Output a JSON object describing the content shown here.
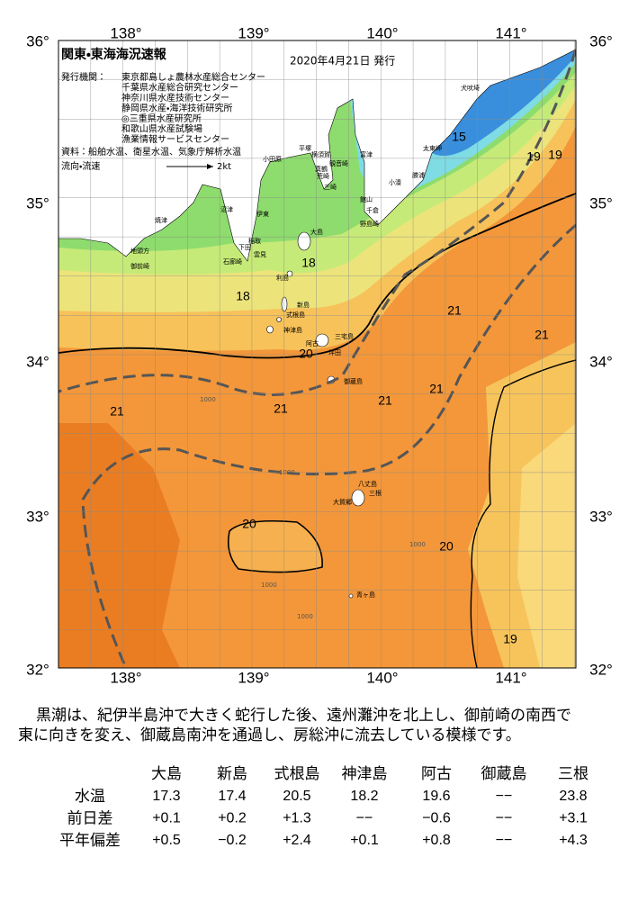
{
  "map": {
    "title": "関東・東海海況速報",
    "date": "2020年4月21日 発行",
    "issuer_label": "発行機関：",
    "issuers": [
      "東京都島しょ農林水産総合センター",
      "千葉県水産総合研究センター",
      "神奈川県水産技術センター",
      "静岡県水産・海洋技術研究所",
      "◎三重県水産研究所",
      "和歌山県水産試験場",
      "漁業情報サービスセンター"
    ],
    "sources": "資料：船舶水温、衛星水温、気象庁解析水温",
    "flow_label": "流向・流速",
    "flow_scale": "2kt",
    "lon_labels": [
      "138°",
      "139°",
      "140°",
      "141°"
    ],
    "lat_labels": [
      "36°",
      "35°",
      "34°",
      "33°",
      "32°"
    ],
    "places": [
      "犬吠埼",
      "太東岬",
      "勝浦",
      "小湊",
      "富津",
      "観音崎",
      "横須賀",
      "平塚",
      "小田原",
      "真鶴",
      "荒崎",
      "三崎",
      "館山",
      "千倉",
      "野島崎",
      "大島",
      "伊東",
      "沼津",
      "焼津",
      "稲取",
      "下田",
      "雲見",
      "石廊崎",
      "地頭方",
      "御前崎",
      "利島",
      "新島",
      "式根島",
      "神津島",
      "阿古",
      "三宅島",
      "坪田",
      "御蔵島",
      "八丈島",
      "大賀郷",
      "三根",
      "青ヶ島"
    ],
    "temperature_labels": [
      "15",
      "19",
      "19",
      "18",
      "18",
      "21",
      "21",
      "21",
      "21",
      "21",
      "21",
      "20",
      "20",
      "20",
      "19"
    ],
    "depth_labels": [
      "1000",
      "1000",
      "1000",
      "1000",
      "1000"
    ]
  },
  "description_lines": [
    "黒潮は、紀伊半島沖で大きく蛇行した後、遠州灘沖を北上し、御前崎の南西で",
    "東に向きを変え、御蔵島南沖を通過し、房総沖に流去している模様です。"
  ],
  "table": {
    "columns": [
      "大島",
      "新島",
      "式根島",
      "神津島",
      "阿古",
      "御蔵島",
      "三根"
    ],
    "rows": [
      {
        "label": "水温",
        "cells": [
          "17.3",
          "17.4",
          "20.5",
          "18.2",
          "19.6",
          "−−",
          "23.8"
        ]
      },
      {
        "label": "前日差",
        "cells": [
          "+0.1",
          "+0.2",
          "+1.3",
          "−−",
          "−0.6",
          "−−",
          "+3.1"
        ]
      },
      {
        "label": "平年偏差",
        "cells": [
          "+0.5",
          "−0.2",
          "+2.4",
          "+0.1",
          "+0.8",
          "−−",
          "+4.3"
        ]
      }
    ]
  }
}
